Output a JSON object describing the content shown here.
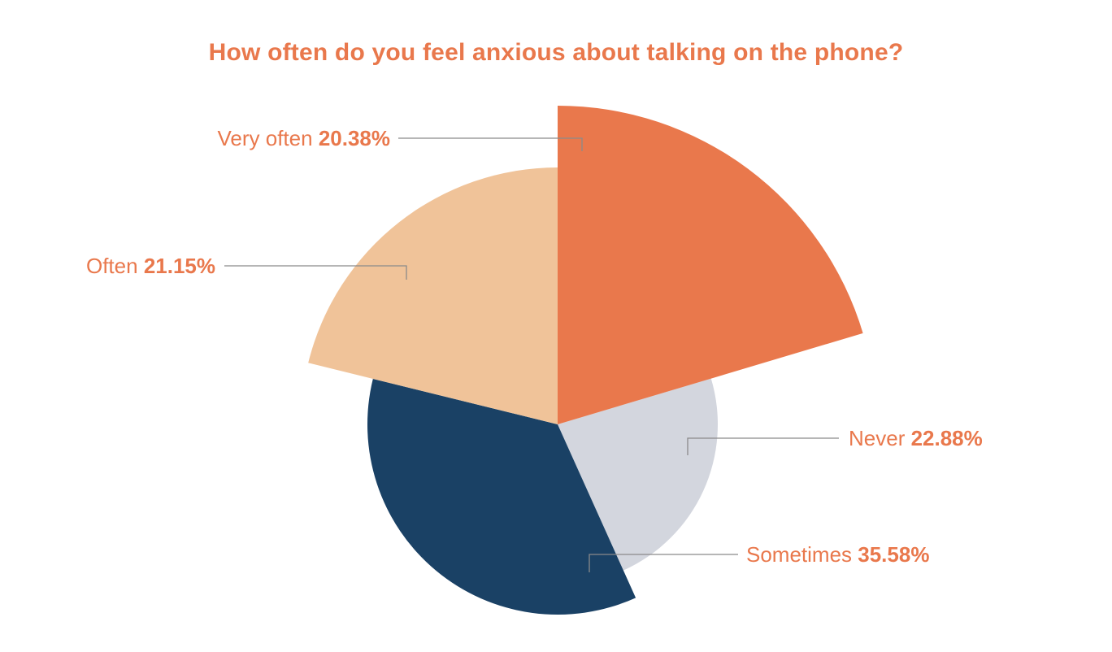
{
  "chart_data": {
    "type": "pie",
    "title": "How often do you feel anxious about talking on the phone?",
    "value_suffix": "%",
    "slices": [
      {
        "label": "Very often",
        "value": 20.38,
        "color": "#e9784c"
      },
      {
        "label": "Never",
        "value": 22.88,
        "color": "#d3d6de"
      },
      {
        "label": "Sometimes",
        "value": 35.58,
        "color": "#1a4165"
      },
      {
        "label": "Often",
        "value": 21.15,
        "color": "#f0c399"
      }
    ],
    "label_color": "#e9784c",
    "leader_color": "#8a8a8a"
  }
}
